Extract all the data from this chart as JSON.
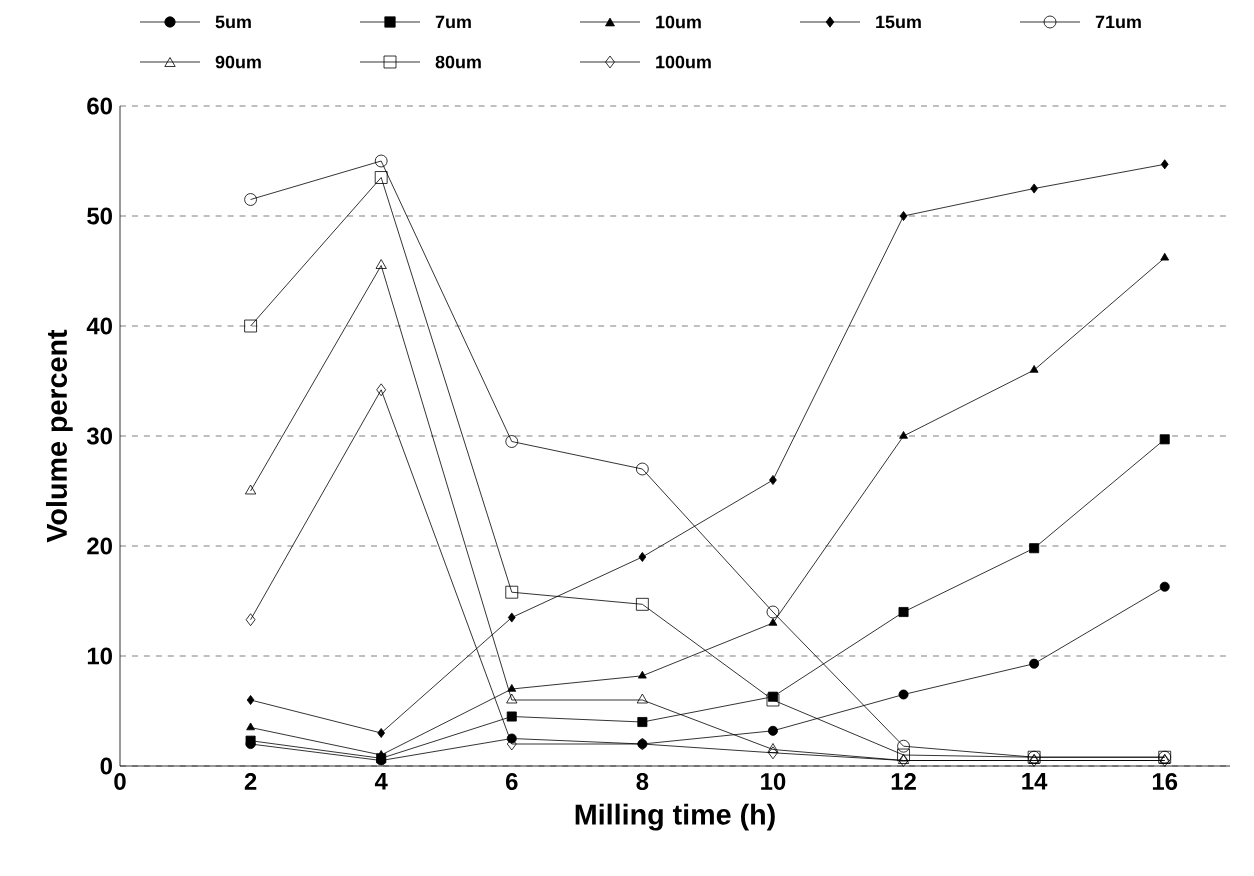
{
  "chart_data": {
    "type": "line",
    "xlabel": "Milling time (h)",
    "ylabel": "Volume percent",
    "x": [
      2,
      4,
      6,
      8,
      10,
      12,
      14,
      16
    ],
    "series": [
      {
        "name": "5um",
        "color": "#000000",
        "marker": "circle",
        "values": [
          2,
          0.5,
          2.5,
          2,
          3.2,
          6.5,
          9.3,
          16.3
        ]
      },
      {
        "name": "7um",
        "color": "#000000",
        "marker": "square",
        "values": [
          2.3,
          0.7,
          4.5,
          4,
          6.3,
          14,
          19.8,
          29.7
        ]
      },
      {
        "name": "10um",
        "color": "#000000",
        "marker": "triangle",
        "values": [
          3.5,
          1,
          7,
          8.2,
          13,
          30,
          36,
          46.2
        ]
      },
      {
        "name": "15um",
        "color": "#000000",
        "marker": "diamond",
        "values": [
          6,
          3,
          13.5,
          19,
          26,
          50,
          52.5,
          54.7
        ]
      },
      {
        "name": "71um",
        "color": "#000000",
        "marker": "circle",
        "values": [
          51.5,
          55,
          29.5,
          27,
          14,
          1.8,
          0.8,
          0.8
        ]
      },
      {
        "name": "90um",
        "color": "#000000",
        "marker": "triangle",
        "values": [
          25,
          45.5,
          6,
          6,
          1.5,
          0.5,
          0.5,
          0.5
        ]
      },
      {
        "name": "80um",
        "color": "#000000",
        "marker": "square",
        "values": [
          40,
          53.5,
          15.8,
          14.7,
          6,
          1,
          0.8,
          0.8
        ]
      },
      {
        "name": "100um",
        "color": "#000000",
        "marker": "diamond",
        "values": [
          13.3,
          34.2,
          2,
          2,
          1.2,
          0.5,
          0.5,
          0.5
        ]
      }
    ],
    "xlim": [
      0,
      17
    ],
    "xticks": [
      0,
      2,
      4,
      6,
      8,
      10,
      12,
      14,
      16
    ],
    "ylim": [
      0,
      60
    ],
    "yticks": [
      0,
      10,
      20,
      30,
      40,
      50,
      60
    ],
    "grid": "y",
    "legend": "top",
    "line_style": "solid"
  }
}
